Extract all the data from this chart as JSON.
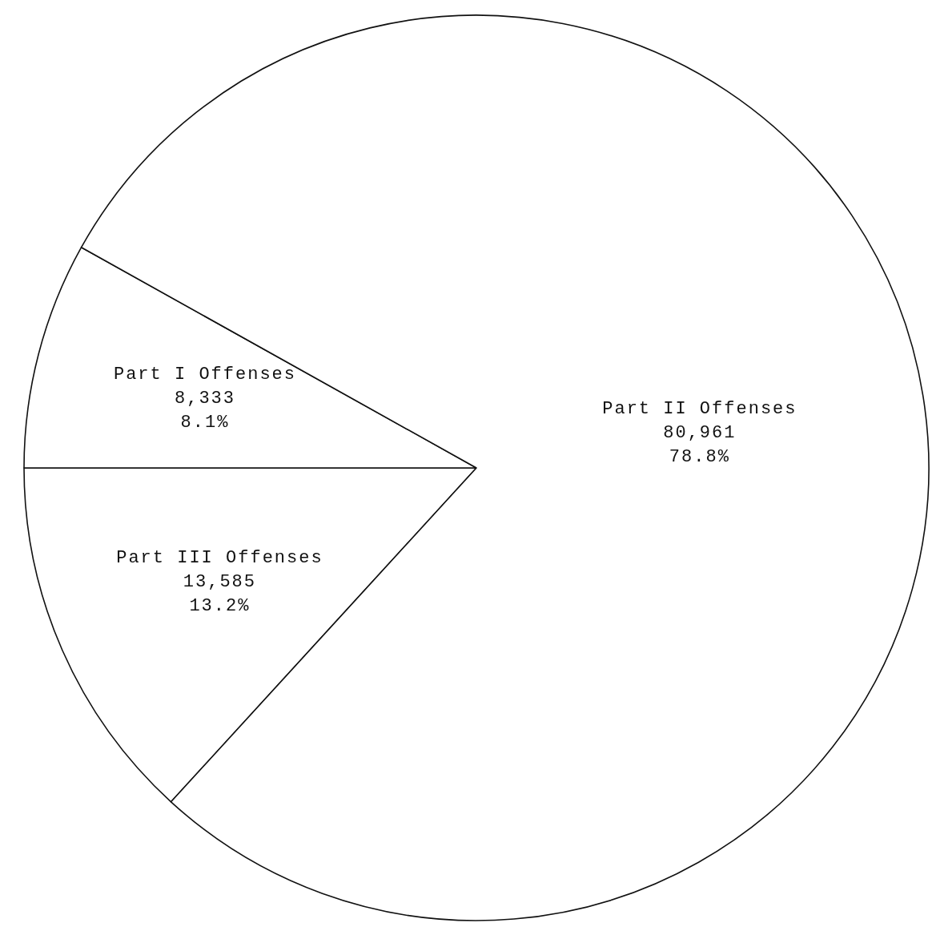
{
  "chart_data": {
    "type": "pie",
    "categories": [
      "Part III Offenses",
      "Part I Offenses",
      "Part II Offenses"
    ],
    "values": [
      13585,
      8333,
      80961
    ],
    "colors": [
      "#ffffff",
      "#ffffff",
      "#ffffff"
    ],
    "value_labels": [
      "13,585\n13.2%",
      "8,333\n8.1%",
      "80,961\n78.8%"
    ],
    "legend": false
  }
}
